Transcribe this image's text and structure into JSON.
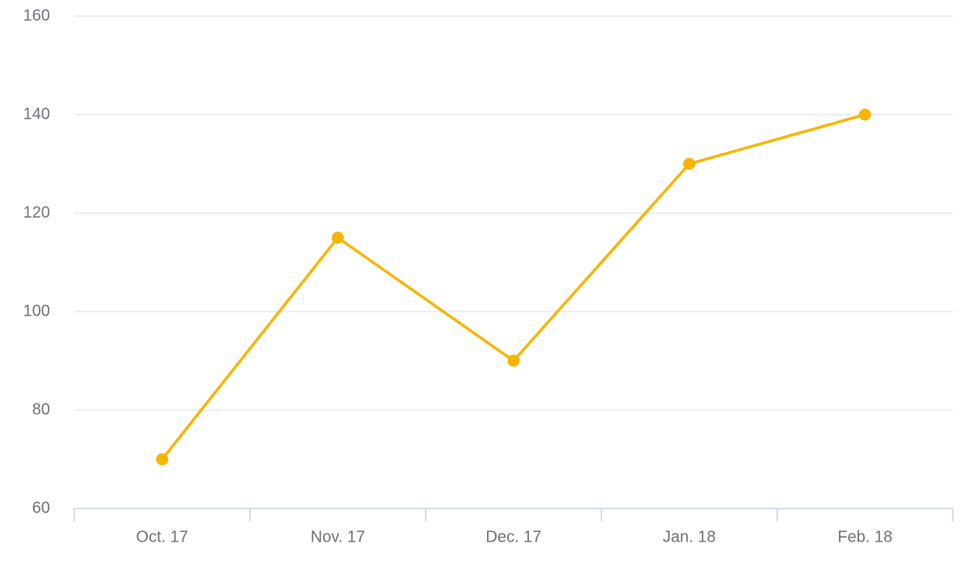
{
  "chart_data": {
    "type": "line",
    "categories": [
      "Oct. 17",
      "Nov. 17",
      "Dec. 17",
      "Jan. 18",
      "Feb. 18"
    ],
    "series": [
      {
        "values": [
          70,
          115,
          90,
          130,
          140
        ],
        "color": "#f7b500"
      }
    ],
    "ylim": [
      60,
      160
    ],
    "yticks": [
      "160",
      "140",
      "120",
      "100",
      "80",
      "60"
    ],
    "grid": true,
    "title": "",
    "xlabel": "",
    "ylabel": ""
  }
}
